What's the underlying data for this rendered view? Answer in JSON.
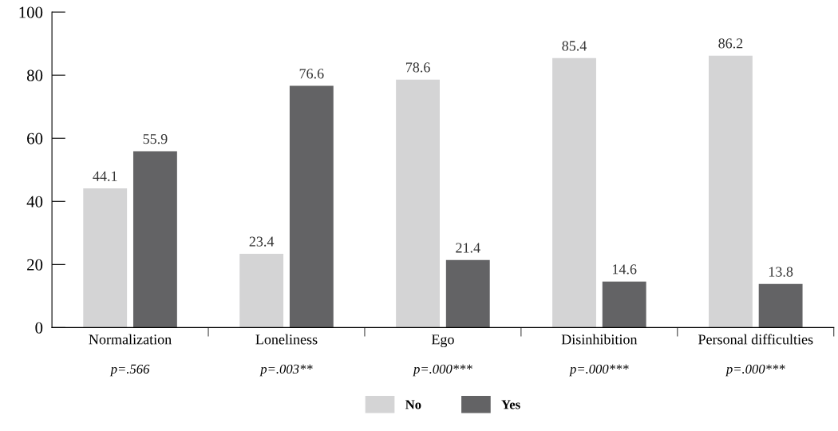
{
  "chart_data": {
    "type": "bar",
    "categories": [
      "Normalization",
      "Loneliness",
      "Ego",
      "Disinhibition",
      "Personal difficulties"
    ],
    "series": [
      {
        "name": "No",
        "color": "#d4d4d5",
        "values": [
          44.1,
          23.4,
          78.6,
          85.4,
          86.2
        ]
      },
      {
        "name": "Yes",
        "color": "#636365",
        "values": [
          55.9,
          76.6,
          21.4,
          14.6,
          13.8
        ]
      }
    ],
    "ylim": [
      0,
      100
    ],
    "yticks": [
      0,
      20,
      40,
      60,
      80,
      100
    ],
    "data_labels": true,
    "grid": false,
    "legend": "bottom",
    "annotations": [
      "p=.566",
      "p=.003**",
      "p=.000***",
      "p=.000***",
      "p=.000***"
    ]
  }
}
